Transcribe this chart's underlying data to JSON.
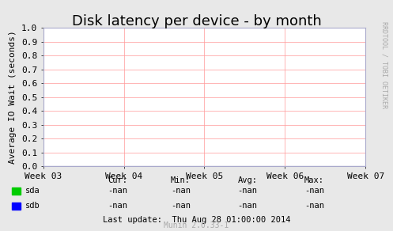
{
  "title": "Disk latency per device - by month",
  "ylabel": "Average IO Wait (seconds)",
  "background_color": "#e8e8e8",
  "plot_bg_color": "#ffffff",
  "grid_color": "#ff9999",
  "axis_color": "#aaaacc",
  "ylim": [
    0.0,
    1.0
  ],
  "yticks": [
    0.0,
    0.1,
    0.2,
    0.3,
    0.4,
    0.5,
    0.6,
    0.7,
    0.8,
    0.9,
    1.0
  ],
  "xtick_labels": [
    "Week 03",
    "Week 04",
    "Week 05",
    "Week 06",
    "Week 07"
  ],
  "xtick_positions": [
    0.0,
    0.25,
    0.5,
    0.75,
    1.0
  ],
  "legend_items": [
    {
      "label": "sda",
      "color": "#00cc00"
    },
    {
      "label": "sdb",
      "color": "#0000ff"
    }
  ],
  "stats_headers": [
    "Cur:",
    "Min:",
    "Avg:",
    "Max:"
  ],
  "stats_sda": [
    "-nan",
    "-nan",
    "-nan",
    "-nan"
  ],
  "stats_sdb": [
    "-nan",
    "-nan",
    "-nan",
    "-nan"
  ],
  "last_update": "Last update:  Thu Aug 28 01:00:00 2014",
  "watermark": "Munin 2.0.33-1",
  "rrdtool_label": "RRDTOOL / TOBI OETIKER",
  "title_fontsize": 13,
  "axis_label_fontsize": 8,
  "tick_fontsize": 8,
  "stats_fontsize": 7.5,
  "watermark_fontsize": 7,
  "rrdtool_fontsize": 6
}
